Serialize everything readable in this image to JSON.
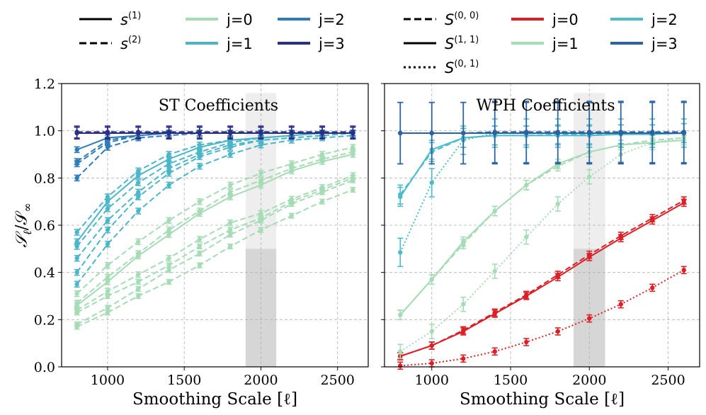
{
  "colors": {
    "j0_st": "#a6dcb5",
    "j1_st": "#4cb6c9",
    "j2_st": "#2f7db8",
    "j3_st": "#2b2f86",
    "red": "#dc1f26",
    "j1_wph": "#a6dcb5",
    "j2_wph": "#4cbcc9",
    "j3_wph": "#2a62a4",
    "band_light": "#eeeeee",
    "band_dark": "#d6d6d6"
  },
  "legend_left": {
    "styles": [
      {
        "label_base": "s",
        "label_sup": "(1)",
        "dash": "solid"
      },
      {
        "label_base": "s",
        "label_sup": "(2)",
        "dash": "dashed"
      }
    ],
    "scales": [
      {
        "label": "j=0",
        "color_key": "j0_st"
      },
      {
        "label": "j=1",
        "color_key": "j1_st"
      },
      {
        "label": "j=2",
        "color_key": "j2_st"
      },
      {
        "label": "j=3",
        "color_key": "j3_st"
      }
    ]
  },
  "legend_right": {
    "styles": [
      {
        "label_base": "S",
        "label_sup": "(0, 0)",
        "dash": "dashed"
      },
      {
        "label_base": "S",
        "label_sup": "(1, 1)",
        "dash": "solid"
      },
      {
        "label_base": "S",
        "label_sup": "(0, 1)",
        "dash": "dotted"
      }
    ],
    "scales": [
      {
        "label": "j=0",
        "color_key": "red"
      },
      {
        "label": "j=1",
        "color_key": "j1_wph"
      },
      {
        "label": "j=2",
        "color_key": "j2_wph"
      },
      {
        "label": "j=3",
        "color_key": "j3_wph"
      }
    ]
  },
  "chart_data": [
    {
      "type": "line",
      "title": "ST Coefficients",
      "xlabel": "Smoothing Scale [ℓ]",
      "ylabel": "S_ℓ/S_∞",
      "xlim": [
        700,
        2700
      ],
      "ylim": [
        0.0,
        1.2
      ],
      "xticks": [
        "1000",
        "1500",
        "2000",
        "2500"
      ],
      "xtick_values": [
        1000,
        1500,
        2000,
        2500
      ],
      "yticks": [
        "0.0",
        "0.2",
        "0.4",
        "0.6",
        "0.8",
        "1.0",
        "1.2"
      ],
      "ytick_values": [
        0.0,
        0.2,
        0.4,
        0.6,
        0.8,
        1.0,
        1.2
      ],
      "grid": true,
      "shaded_band": {
        "x": [
          1900,
          2100
        ],
        "light_y": [
          0.5,
          1.16
        ],
        "dark_y": [
          0.0,
          0.5
        ]
      },
      "x": [
        800,
        1000,
        1200,
        1400,
        1600,
        1800,
        2000,
        2200,
        2400,
        2600
      ],
      "series": [
        {
          "name": "j=0 s1",
          "color_key": "j0_st",
          "dash": "solid",
          "values": [
            0.26,
            0.36,
            0.47,
            0.56,
            0.65,
            0.72,
            0.77,
            0.83,
            0.87,
            0.9
          ],
          "err": 0.012
        },
        {
          "name": "j=0 s2 a",
          "color_key": "j0_st",
          "dash": "dashed",
          "values": [
            0.17,
            0.23,
            0.3,
            0.36,
            0.43,
            0.51,
            0.58,
            0.64,
            0.7,
            0.75
          ],
          "err": 0.01
        },
        {
          "name": "j=0 s2 b",
          "color_key": "j0_st",
          "dash": "dashed",
          "values": [
            0.18,
            0.25,
            0.33,
            0.41,
            0.48,
            0.56,
            0.62,
            0.69,
            0.74,
            0.79
          ],
          "err": 0.01
        },
        {
          "name": "j=0 s2 c",
          "color_key": "j0_st",
          "dash": "dashed",
          "values": [
            0.24,
            0.32,
            0.39,
            0.46,
            0.54,
            0.61,
            0.65,
            0.71,
            0.76,
            0.81
          ],
          "err": 0.012
        },
        {
          "name": "j=0 s2 d",
          "color_key": "j0_st",
          "dash": "dashed",
          "values": [
            0.27,
            0.38,
            0.48,
            0.58,
            0.66,
            0.74,
            0.79,
            0.84,
            0.88,
            0.91
          ],
          "err": 0.012
        },
        {
          "name": "j=0 s2 e",
          "color_key": "j0_st",
          "dash": "dashed",
          "values": [
            0.31,
            0.43,
            0.53,
            0.62,
            0.7,
            0.77,
            0.82,
            0.86,
            0.9,
            0.93
          ],
          "err": 0.012
        },
        {
          "name": "j=0 s2 f",
          "color_key": "j0_st",
          "dash": "dashed",
          "values": [
            0.23,
            0.3,
            0.36,
            0.43,
            0.51,
            0.58,
            0.63,
            0.7,
            0.75,
            0.8
          ],
          "err": 0.01
        },
        {
          "name": "j=1 s1",
          "color_key": "j1_st",
          "dash": "solid",
          "values": [
            0.53,
            0.7,
            0.81,
            0.88,
            0.93,
            0.96,
            0.97,
            0.98,
            0.99,
            0.99
          ],
          "err": 0.012
        },
        {
          "name": "j=1 s2 a",
          "color_key": "j1_st",
          "dash": "dashed",
          "values": [
            0.35,
            0.52,
            0.66,
            0.77,
            0.85,
            0.9,
            0.94,
            0.96,
            0.97,
            0.98
          ],
          "err": 0.012
        },
        {
          "name": "j=1 s2 b",
          "color_key": "j1_st",
          "dash": "dashed",
          "values": [
            0.4,
            0.58,
            0.72,
            0.82,
            0.89,
            0.93,
            0.96,
            0.97,
            0.98,
            0.99
          ],
          "err": 0.012
        },
        {
          "name": "j=1 s2 c",
          "color_key": "j1_st",
          "dash": "dashed",
          "values": [
            0.46,
            0.62,
            0.74,
            0.84,
            0.9,
            0.94,
            0.96,
            0.97,
            0.98,
            0.99
          ],
          "err": 0.012
        },
        {
          "name": "j=1 s2 d",
          "color_key": "j1_st",
          "dash": "dashed",
          "values": [
            0.57,
            0.72,
            0.83,
            0.9,
            0.94,
            0.96,
            0.97,
            0.98,
            0.99,
            0.99
          ],
          "err": 0.012
        },
        {
          "name": "j=1 s2 e",
          "color_key": "j1_st",
          "dash": "dashed",
          "values": [
            0.51,
            0.67,
            0.78,
            0.86,
            0.91,
            0.95,
            0.97,
            0.98,
            0.99,
            0.99
          ],
          "err": 0.012
        },
        {
          "name": "j=2 s1",
          "color_key": "j2_st",
          "dash": "solid",
          "values": [
            0.92,
            0.97,
            0.98,
            0.99,
            0.99,
            0.99,
            0.99,
            0.99,
            0.99,
            0.99
          ],
          "err": 0.012
        },
        {
          "name": "j=2 s2 a",
          "color_key": "j2_st",
          "dash": "dashed",
          "values": [
            0.8,
            0.93,
            0.97,
            0.98,
            0.99,
            0.99,
            0.99,
            0.99,
            0.99,
            0.99
          ],
          "err": 0.012
        },
        {
          "name": "j=2 s2 b",
          "color_key": "j2_st",
          "dash": "dashed",
          "values": [
            0.86,
            0.95,
            0.98,
            0.99,
            0.99,
            0.99,
            0.99,
            0.99,
            0.99,
            0.99
          ],
          "err": 0.012
        },
        {
          "name": "j=2 s2 c",
          "color_key": "j2_st",
          "dash": "dashed",
          "values": [
            0.87,
            0.96,
            0.98,
            0.99,
            0.99,
            0.99,
            0.99,
            0.99,
            0.99,
            0.99
          ],
          "err": 0.012
        },
        {
          "name": "j=3 s1",
          "color_key": "j3_st",
          "dash": "solid",
          "values": [
            0.99,
            0.99,
            0.99,
            0.99,
            0.99,
            0.99,
            0.99,
            0.99,
            0.99,
            0.99
          ],
          "err": 0.025
        },
        {
          "name": "j=3 s2 a",
          "color_key": "j3_st",
          "dash": "dashed",
          "values": [
            0.995,
            0.995,
            0.995,
            0.995,
            0.995,
            0.995,
            0.995,
            0.995,
            0.995,
            0.995
          ],
          "err": 0.025
        }
      ]
    },
    {
      "type": "line",
      "title": "WPH Coefficients",
      "xlabel": "Smoothing Scale [ℓ]",
      "ylabel": "",
      "xlim": [
        700,
        2700
      ],
      "ylim": [
        0.0,
        1.2
      ],
      "xticks": [
        "1000",
        "1500",
        "2000",
        "2500"
      ],
      "xtick_values": [
        1000,
        1500,
        2000,
        2500
      ],
      "yticks": [],
      "ytick_values": [
        0.0,
        0.2,
        0.4,
        0.6,
        0.8,
        1.0,
        1.2
      ],
      "grid": true,
      "shaded_band": {
        "x": [
          1900,
          2100
        ],
        "light_y": [
          0.5,
          1.16
        ],
        "dark_y": [
          0.0,
          0.5
        ]
      },
      "x": [
        800,
        1000,
        1200,
        1400,
        1600,
        1800,
        2000,
        2200,
        2400,
        2600
      ],
      "series": [
        {
          "name": "j=0 S00",
          "color_key": "red",
          "dash": "dashed",
          "values": [
            0.045,
            0.09,
            0.155,
            0.23,
            0.305,
            0.39,
            0.475,
            0.555,
            0.63,
            0.705
          ],
          "err": 0.015
        },
        {
          "name": "j=0 S11",
          "color_key": "red",
          "dash": "solid",
          "values": [
            0.045,
            0.09,
            0.15,
            0.225,
            0.3,
            0.38,
            0.465,
            0.545,
            0.62,
            0.695
          ],
          "err": 0.015
        },
        {
          "name": "j=0 S01",
          "color_key": "red",
          "dash": "dotted",
          "values": [
            0.005,
            0.015,
            0.035,
            0.065,
            0.105,
            0.15,
            0.205,
            0.265,
            0.335,
            0.41
          ],
          "err": 0.015
        },
        {
          "name": "j=1 S00",
          "color_key": "j1_wph",
          "dash": "dashed",
          "values": [
            0.22,
            0.37,
            0.52,
            0.66,
            0.77,
            0.85,
            0.91,
            0.94,
            0.96,
            0.97
          ],
          "err": 0.02
        },
        {
          "name": "j=1 S11",
          "color_key": "j1_wph",
          "dash": "solid",
          "values": [
            0.22,
            0.37,
            0.53,
            0.66,
            0.77,
            0.86,
            0.91,
            0.94,
            0.95,
            0.96
          ],
          "err": 0.02
        },
        {
          "name": "j=1 S01",
          "color_key": "j1_wph",
          "dash": "dotted",
          "values": [
            0.065,
            0.15,
            0.265,
            0.405,
            0.55,
            0.69,
            0.805,
            0.9,
            0.95,
            0.97
          ],
          "err": 0.03
        },
        {
          "name": "j=2 S00",
          "color_key": "j2_wph",
          "dash": "dashed",
          "values": [
            0.73,
            0.91,
            0.97,
            0.98,
            0.98,
            0.985,
            0.985,
            0.985,
            0.985,
            0.99
          ],
          "err": 0.04
        },
        {
          "name": "j=2 S11",
          "color_key": "j2_wph",
          "dash": "solid",
          "values": [
            0.72,
            0.92,
            0.97,
            0.98,
            0.98,
            0.98,
            0.98,
            0.985,
            0.985,
            0.99
          ],
          "err": 0.04
        },
        {
          "name": "j=2 S01",
          "color_key": "j2_wph",
          "dash": "dotted",
          "values": [
            0.485,
            0.78,
            0.96,
            0.99,
            0.99,
            0.99,
            0.99,
            0.99,
            0.99,
            0.99
          ],
          "err": 0.06
        },
        {
          "name": "j=3 S00",
          "color_key": "j3_wph",
          "dash": "dashed",
          "values": [
            0.99,
            0.99,
            0.99,
            0.995,
            0.995,
            0.995,
            0.995,
            0.995,
            0.995,
            0.995
          ],
          "err": 0.13
        },
        {
          "name": "j=3 S11",
          "color_key": "j3_wph",
          "dash": "solid",
          "values": [
            0.99,
            0.99,
            0.99,
            0.99,
            0.99,
            0.99,
            0.99,
            0.99,
            0.99,
            0.99
          ],
          "err": 0.13
        },
        {
          "name": "j=3 S01",
          "color_key": "j3_wph",
          "dash": "dotted",
          "values": [
            0.99,
            0.99,
            0.99,
            0.99,
            0.99,
            0.99,
            0.99,
            0.99,
            0.99,
            0.99
          ],
          "err": 0.13
        }
      ]
    }
  ]
}
